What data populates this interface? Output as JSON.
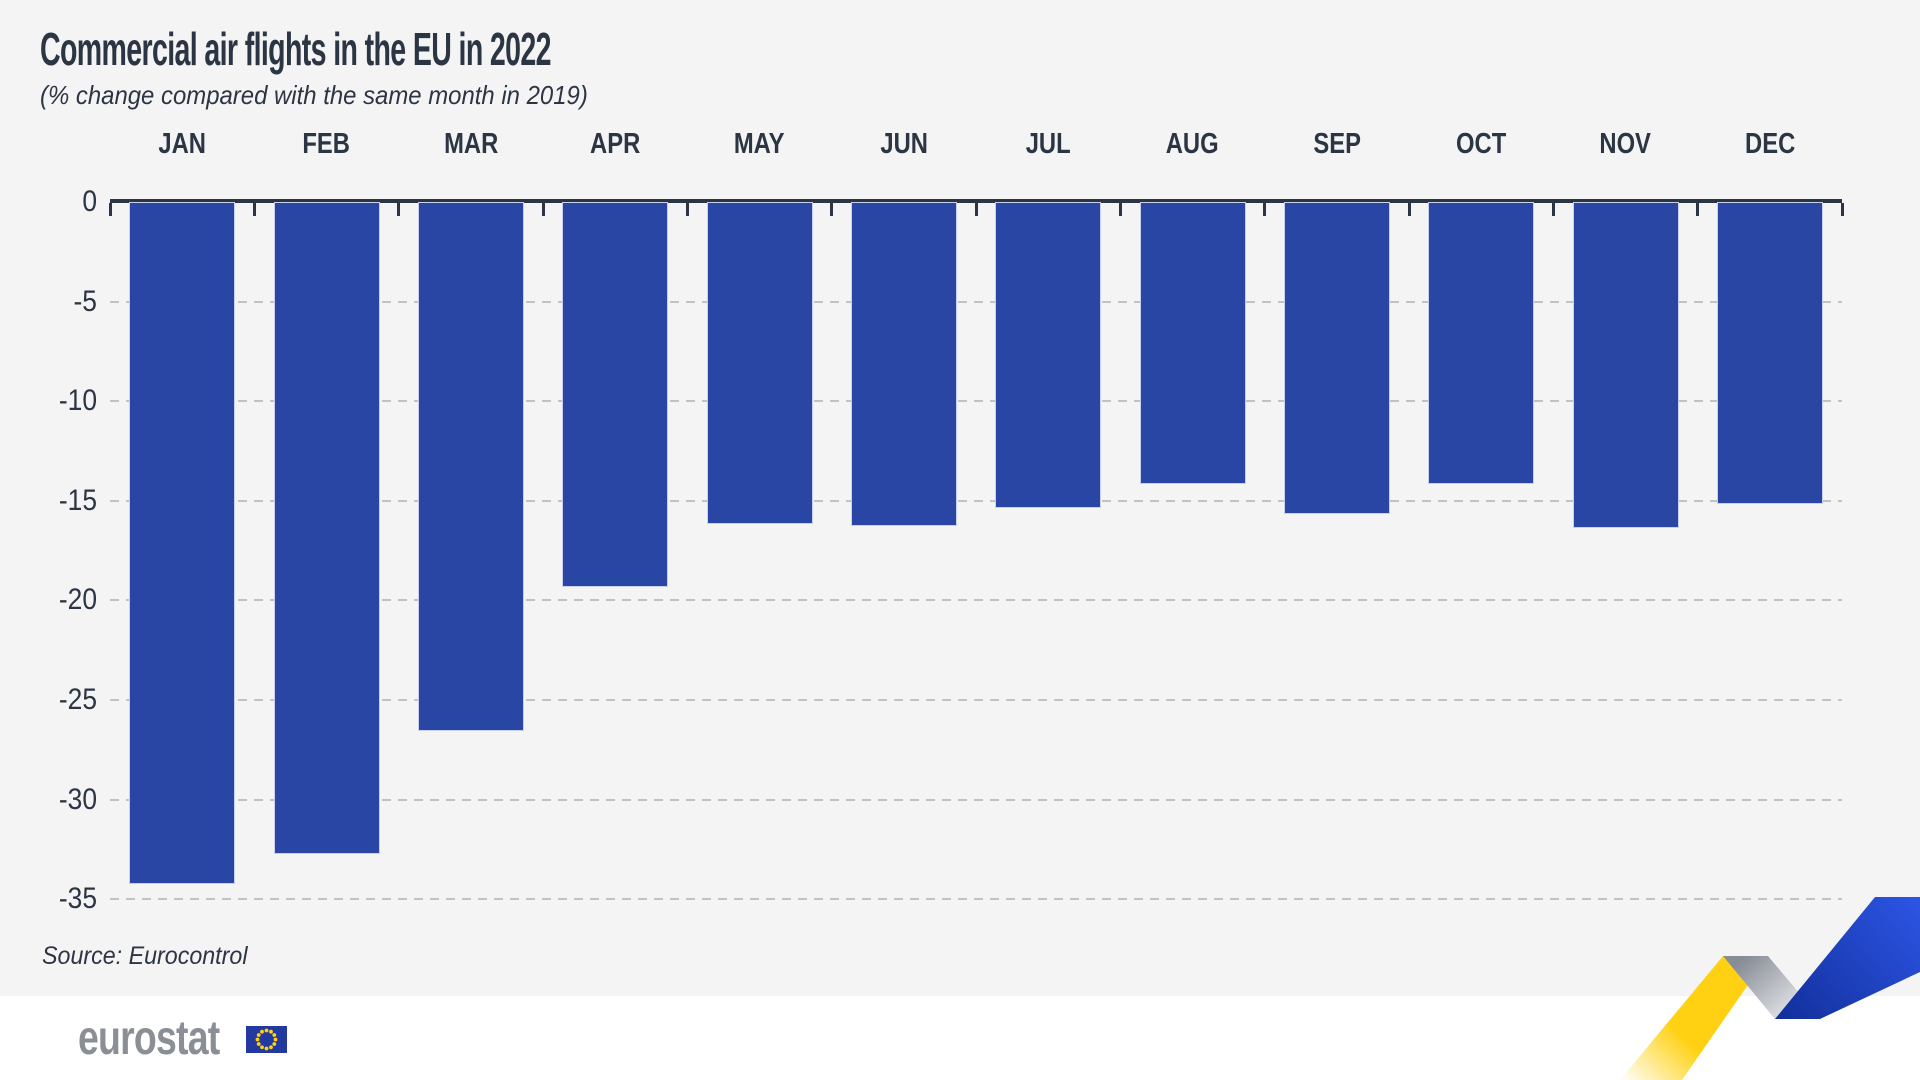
{
  "page": {
    "title": "Commercial air flights in the EU in 2022",
    "subtitle": "(% change compared with the same month in 2019)",
    "source_note": "Source: Eurocontrol",
    "footer": {
      "logo_text": "eurostat"
    }
  },
  "colors": {
    "background": "#f4f4f4",
    "footer_background": "#ffffff",
    "bar_blue": "#2a46a4",
    "text_dark": "#2b3543",
    "gridline_gray": "#c2c2c2",
    "logo_gray": "#8a8f96",
    "flag_blue": "#2239a0",
    "star_yellow": "#ffd117",
    "ribbon_yellow": "#ffd112",
    "ribbon_gray": "#878c95",
    "ribbon_blue": "#2d55e5"
  },
  "icons": {
    "eu_flag": "eu-flag-icon",
    "ribbon": "trend-ribbon-graphic"
  },
  "chart_data": {
    "type": "bar",
    "title": "Commercial air flights in the EU in 2022",
    "subtitle": "(% change compared with the same month in 2019)",
    "source": "Source: Eurocontrol",
    "categories": [
      "JAN",
      "FEB",
      "MAR",
      "APR",
      "MAY",
      "JUN",
      "JUL",
      "AUG",
      "SEP",
      "OCT",
      "NOV",
      "DEC"
    ],
    "values": [
      -34.2,
      -32.7,
      -26.5,
      -19.3,
      -16.1,
      -16.2,
      -15.3,
      -14.1,
      -15.6,
      -14.1,
      -16.3,
      -15.1
    ],
    "unit": "%",
    "baseline": 0,
    "ylim": [
      -35,
      0
    ],
    "yticks": [
      0,
      -5,
      -10,
      -15,
      -20,
      -25,
      -30,
      -35
    ],
    "xlabel": "",
    "ylabel": "",
    "grid": "horizontal-dashed",
    "legend": "none",
    "bar_color": "#2a46a4"
  }
}
